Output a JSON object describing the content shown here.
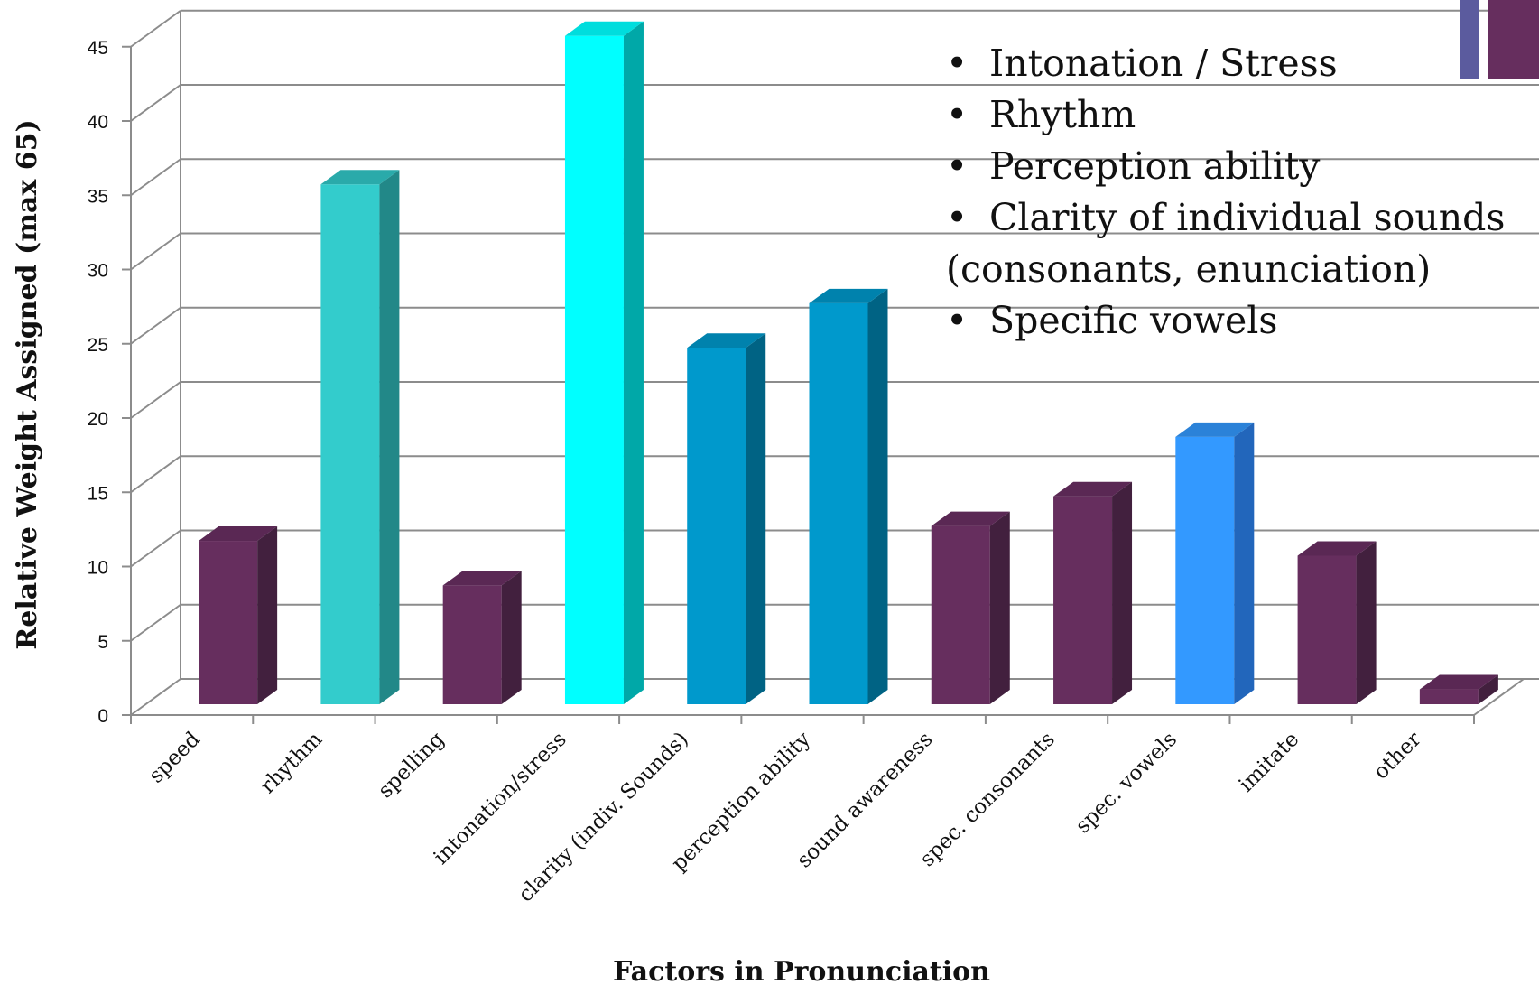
{
  "chart_data": {
    "type": "bar",
    "title": "",
    "xlabel": "Factors in Pronunciation",
    "ylabel": "Relative Weight Assigned (max 65)",
    "ylim": [
      0,
      45
    ],
    "yticks": [
      "0",
      "5",
      "10",
      "15",
      "20",
      "25",
      "30",
      "35",
      "40",
      "45"
    ],
    "grid": true,
    "style": "3d-column",
    "categories": [
      "speed",
      "rhythm",
      "spelling",
      "intonation/stress",
      "clarity (indiv. Sounds)",
      "perception ability",
      "sound awareness",
      "spec. consonants",
      "spec. vowels",
      "imitate",
      "other"
    ],
    "values": [
      11,
      35,
      8,
      45,
      24,
      27,
      12,
      14,
      18,
      10,
      1
    ],
    "colors": [
      "#662e5e",
      "#33cccc",
      "#662e5e",
      "#00ffff",
      "#0099cc",
      "#0099cc",
      "#662e5e",
      "#662e5e",
      "#3399ff",
      "#662e5e",
      "#662e5e"
    ],
    "side_colors": [
      "#42203e",
      "#228888",
      "#42203e",
      "#00a8a8",
      "#006384",
      "#006384",
      "#42203e",
      "#42203e",
      "#2266bb",
      "#42203e",
      "#42203e"
    ],
    "top_colors": [
      "#5a2854",
      "#2aaaaa",
      "#5a2854",
      "#00dddd",
      "#0082ad",
      "#0082ad",
      "#5a2854",
      "#5a2854",
      "#2b82d8",
      "#5a2854",
      "#5a2854"
    ]
  },
  "annotation": {
    "bullets": [
      "Intonation / Stress",
      "Rhythm",
      "Perception ability",
      "Clarity of individual sounds",
      "Specific vowels"
    ],
    "continuation": "(consonants, enunciation)",
    "bullet_glyph": "•"
  },
  "decor": {
    "accent1": "#5b5b9e",
    "accent2": "#662e5e"
  }
}
